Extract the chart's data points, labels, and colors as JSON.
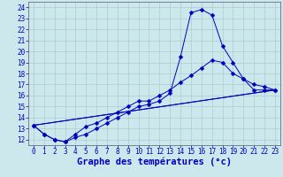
{
  "xlabel": "Graphe des températures (°c)",
  "xlim": [
    -0.5,
    23.5
  ],
  "ylim": [
    11.5,
    24.5
  ],
  "xticks": [
    0,
    1,
    2,
    3,
    4,
    5,
    6,
    7,
    8,
    9,
    10,
    11,
    12,
    13,
    14,
    15,
    16,
    17,
    18,
    19,
    20,
    21,
    22,
    23
  ],
  "yticks": [
    12,
    13,
    14,
    15,
    16,
    17,
    18,
    19,
    20,
    21,
    22,
    23,
    24
  ],
  "background_color": "#cce8ec",
  "grid_color": "#aacccc",
  "line_color": "#0000bb",
  "line1_x": [
    0,
    1,
    2,
    3,
    4,
    5,
    6,
    7,
    8,
    9,
    10,
    11,
    12,
    13,
    14,
    15,
    16,
    17,
    18,
    19,
    20,
    21,
    22,
    23
  ],
  "line1_y": [
    13.3,
    12.5,
    12.0,
    11.8,
    12.2,
    12.5,
    13.0,
    13.5,
    14.0,
    14.5,
    15.0,
    15.2,
    15.5,
    16.2,
    19.5,
    23.5,
    23.8,
    23.3,
    20.5,
    19.0,
    17.5,
    16.5,
    16.5,
    16.5
  ],
  "line2_x": [
    0,
    1,
    2,
    3,
    4,
    5,
    6,
    7,
    8,
    9,
    10,
    11,
    12,
    13,
    14,
    15,
    16,
    17,
    18,
    19,
    20,
    21,
    22,
    23
  ],
  "line2_y": [
    13.3,
    12.5,
    12.0,
    11.8,
    12.5,
    13.2,
    13.5,
    14.0,
    14.5,
    15.0,
    15.5,
    15.5,
    16.0,
    16.5,
    17.2,
    17.8,
    18.5,
    19.2,
    19.0,
    18.0,
    17.5,
    17.0,
    16.8,
    16.5
  ],
  "line3_x": [
    0,
    23
  ],
  "line3_y": [
    13.3,
    16.5
  ],
  "line4_x": [
    0,
    23
  ],
  "line4_y": [
    13.3,
    16.5
  ],
  "marker": "D",
  "marker_size": 2.5,
  "font_color": "#0000bb",
  "tick_fontsize": 5.5,
  "xlabel_fontsize": 7.5
}
